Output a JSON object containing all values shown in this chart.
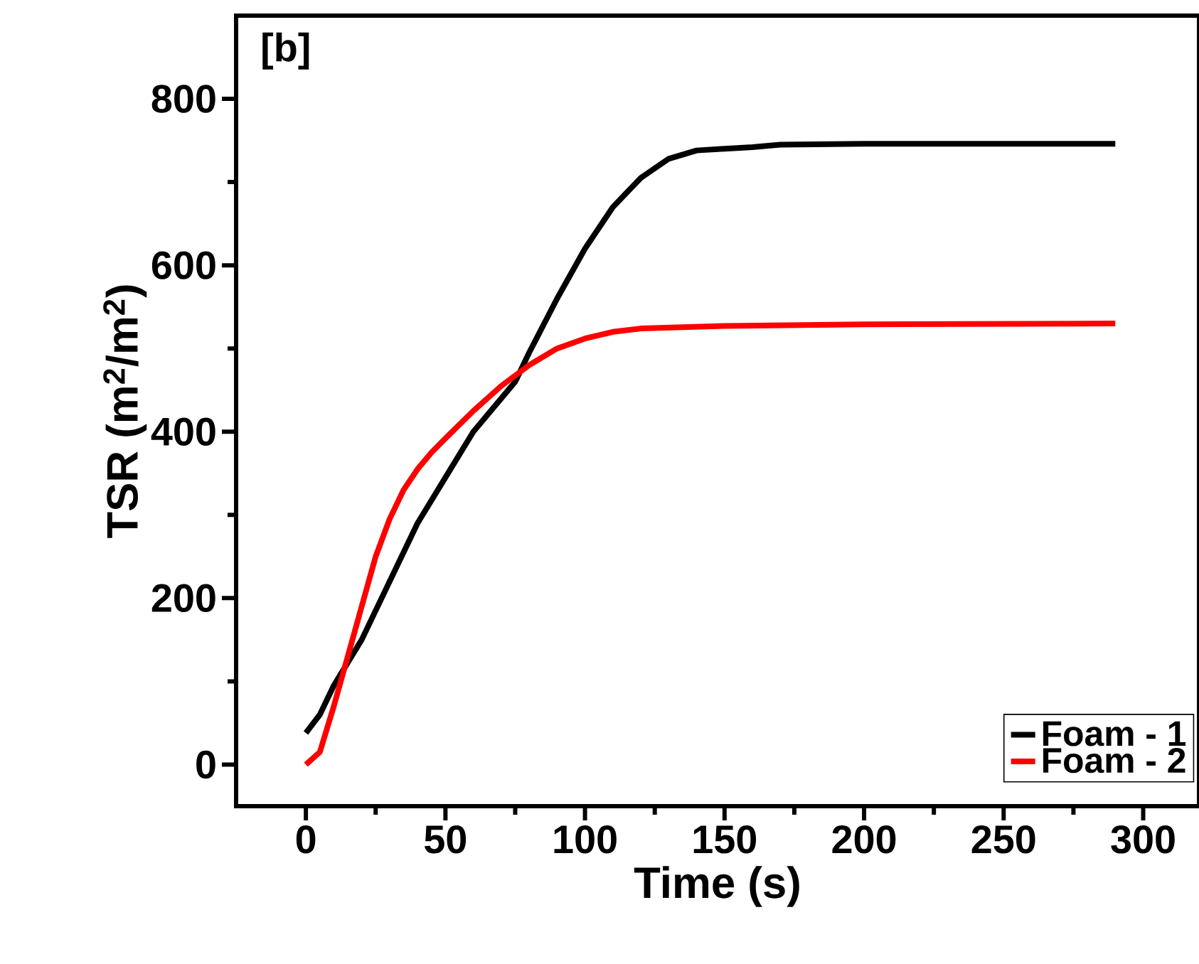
{
  "chart_data": {
    "type": "line",
    "xlabel": "Time (s)",
    "ylabel": "TSR (m$^{2}$/m$^{2}$)",
    "annotations": [
      "[b]"
    ],
    "xlim": [
      -25,
      320
    ],
    "ylim": [
      -50,
      900
    ],
    "xticks": [
      0,
      50,
      100,
      150,
      200,
      250,
      300
    ],
    "yticks": [
      0,
      200,
      400,
      600,
      800
    ],
    "grid": false,
    "legend": "bottom right",
    "marker": "none",
    "line_style": "solid",
    "series": [
      {
        "name": "Foam - 1",
        "color": "#000000",
        "x": [
          0,
          5,
          10,
          20,
          30,
          40,
          50,
          60,
          70,
          75,
          80,
          90,
          100,
          110,
          120,
          130,
          140,
          150,
          160,
          170,
          200,
          290
        ],
        "values": [
          38,
          60,
          95,
          150,
          220,
          290,
          345,
          400,
          440,
          460,
          495,
          560,
          620,
          670,
          705,
          728,
          738,
          740,
          742,
          745,
          746,
          746
        ]
      },
      {
        "name": "Foam - 2",
        "color": "#ff0000",
        "x": [
          0,
          5,
          10,
          15,
          20,
          25,
          30,
          35,
          40,
          45,
          50,
          60,
          70,
          80,
          90,
          100,
          110,
          120,
          150,
          200,
          290
        ],
        "values": [
          0,
          15,
          70,
          130,
          190,
          250,
          295,
          330,
          355,
          375,
          392,
          425,
          455,
          480,
          500,
          512,
          520,
          524,
          527,
          529,
          530
        ]
      }
    ]
  }
}
